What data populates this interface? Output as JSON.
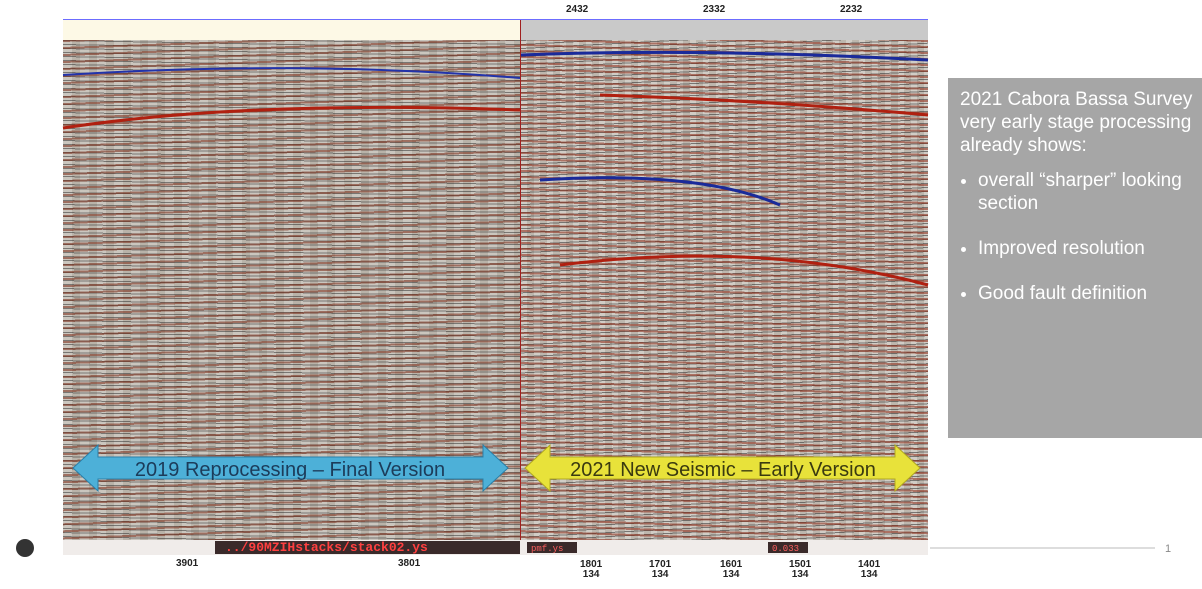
{
  "top_ticks": [
    "2432",
    "2332",
    "2232"
  ],
  "arrows": {
    "left": "2019 Reprocessing – Final Version",
    "right": "2021 New Seismic – Early Version"
  },
  "footer_strip": {
    "path": "../90MZIHstacks/stack02.ys",
    "file": "pmf.ys",
    "value": "0.033"
  },
  "bottom_left_labels": [
    "3901",
    "3801"
  ],
  "bottom_right_labels": [
    [
      "1801",
      "134"
    ],
    [
      "1701",
      "134"
    ],
    [
      "1601",
      "134"
    ],
    [
      "1501",
      "134"
    ],
    [
      "1401",
      "134"
    ]
  ],
  "sidebar": {
    "intro": "2021 Cabora Bassa Survey very early stage processing already shows:",
    "bullets": [
      "overall “sharper” looking section",
      "Improved resolution",
      "Good fault definition"
    ]
  },
  "page_number": "1"
}
